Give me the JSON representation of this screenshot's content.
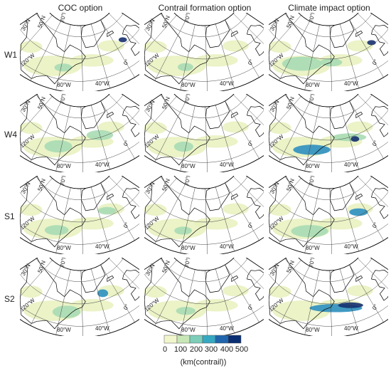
{
  "columns": [
    "COC option",
    "Contrail formation option",
    "Climate impact option"
  ],
  "rows": [
    "W1",
    "W4",
    "S1",
    "S2"
  ],
  "grid_labels": {
    "lat_30": "30°N",
    "lat_50": "50°N",
    "lat_70": "70°N",
    "lon_120": "120°W",
    "lon_80": "80°W",
    "lon_40": "40°W",
    "lon_0": "0°"
  },
  "colorbar": {
    "ticks": [
      "0",
      "100",
      "200",
      "300",
      "400",
      "500"
    ],
    "unit": "(km(contrail))",
    "colors": [
      "#f1f6cc",
      "#c9e7b6",
      "#7dcdb9",
      "#37a8c1",
      "#2166ac",
      "#0a2f73"
    ]
  },
  "colors": {
    "land_outline": "#000000",
    "grid": "#444444",
    "low": "#e7f1bd",
    "mid": "#a8dcb4",
    "high": "#2d8fc0",
    "top": "#16306f"
  }
}
